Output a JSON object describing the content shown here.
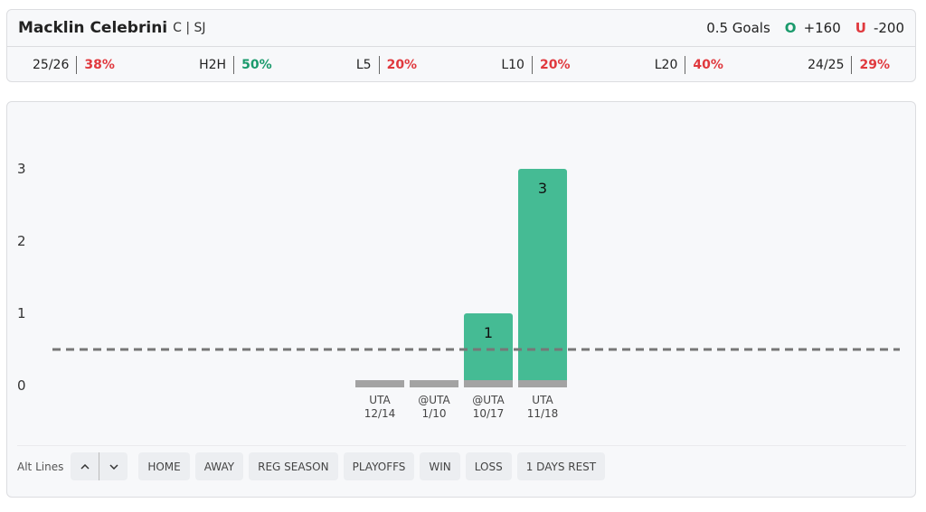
{
  "header": {
    "name": "Macklin Celebrini",
    "position_team": "C | SJ",
    "line": "0.5 Goals",
    "over_label": "O",
    "over_odds": "+160",
    "under_label": "U",
    "under_odds": "-200"
  },
  "stats": [
    {
      "label": "25/26",
      "value": "38%",
      "color": "#e0393e"
    },
    {
      "label": "H2H",
      "value": "50%",
      "color": "#1a9a6c"
    },
    {
      "label": "L5",
      "value": "20%",
      "color": "#e0393e"
    },
    {
      "label": "L10",
      "value": "20%",
      "color": "#e0393e"
    },
    {
      "label": "L20",
      "value": "40%",
      "color": "#e0393e"
    },
    {
      "label": "24/25",
      "value": "29%",
      "color": "#e0393e"
    }
  ],
  "chart_data": {
    "type": "bar",
    "opponents": [
      "UTA",
      "@UTA",
      "@UTA",
      "UTA"
    ],
    "categories": [
      "12/14",
      "1/10",
      "10/17",
      "11/18"
    ],
    "values": [
      0,
      0,
      1,
      3
    ],
    "color": "#45bb94",
    "base_color": "#a3a3a3",
    "threshold": 0.5,
    "ylim": [
      0,
      3
    ],
    "yticks": [
      0,
      1,
      2,
      3
    ]
  },
  "controls": {
    "alt_lines": "Alt Lines",
    "filters": [
      "HOME",
      "AWAY",
      "REG SEASON",
      "PLAYOFFS",
      "WIN",
      "LOSS",
      "1 DAYS REST"
    ]
  }
}
